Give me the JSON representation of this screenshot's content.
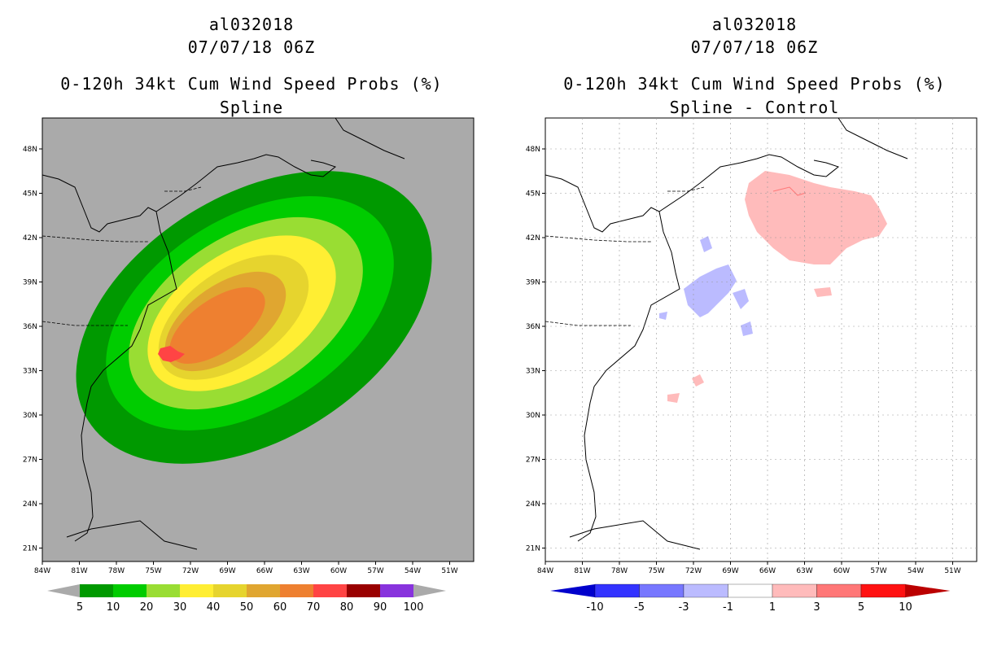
{
  "left_panel": {
    "storm_id": "al032018",
    "datetime": "07/07/18 06Z",
    "product": "0-120h 34kt Cum Wind Speed Probs (%)",
    "subtitle": "Spline",
    "colorbar": {
      "labels": [
        "5",
        "10",
        "20",
        "30",
        "40",
        "50",
        "60",
        "70",
        "80",
        "90",
        "100"
      ],
      "colors": [
        "#009900",
        "#00cc00",
        "#99dd33",
        "#ffee33",
        "#e6d42e",
        "#e0a630",
        "#ee8030",
        "#ff4444",
        "#990000",
        "#8833dd"
      ]
    }
  },
  "right_panel": {
    "storm_id": "al032018",
    "datetime": "07/07/18 06Z",
    "product": "0-120h 34kt Cum Wind Speed Probs (%)",
    "subtitle": "Spline - Control",
    "colorbar": {
      "labels": [
        "-10",
        "-5",
        "-3",
        "-1",
        "1",
        "3",
        "5",
        "10"
      ],
      "colors": [
        "#0000cc",
        "#3333ff",
        "#7777ff",
        "#bbbbff",
        "#ffffff",
        "#ffbbbb",
        "#ff7777",
        "#ff1111",
        "#bb0000"
      ]
    }
  },
  "axes": {
    "lat_labels": [
      "48N",
      "45N",
      "42N",
      "39N",
      "36N",
      "33N",
      "30N",
      "27N",
      "24N",
      "21N"
    ],
    "lon_labels": [
      "84W",
      "81W",
      "78W",
      "75W",
      "72W",
      "69W",
      "66W",
      "63W",
      "60W",
      "57W",
      "54W",
      "51W"
    ],
    "lat_range": [
      20,
      50
    ],
    "lon_range": [
      -84,
      -49
    ]
  },
  "colors": {
    "land_bg": "#aaaaaa",
    "diff_bg": "#ffffff",
    "grid": "#999999"
  }
}
